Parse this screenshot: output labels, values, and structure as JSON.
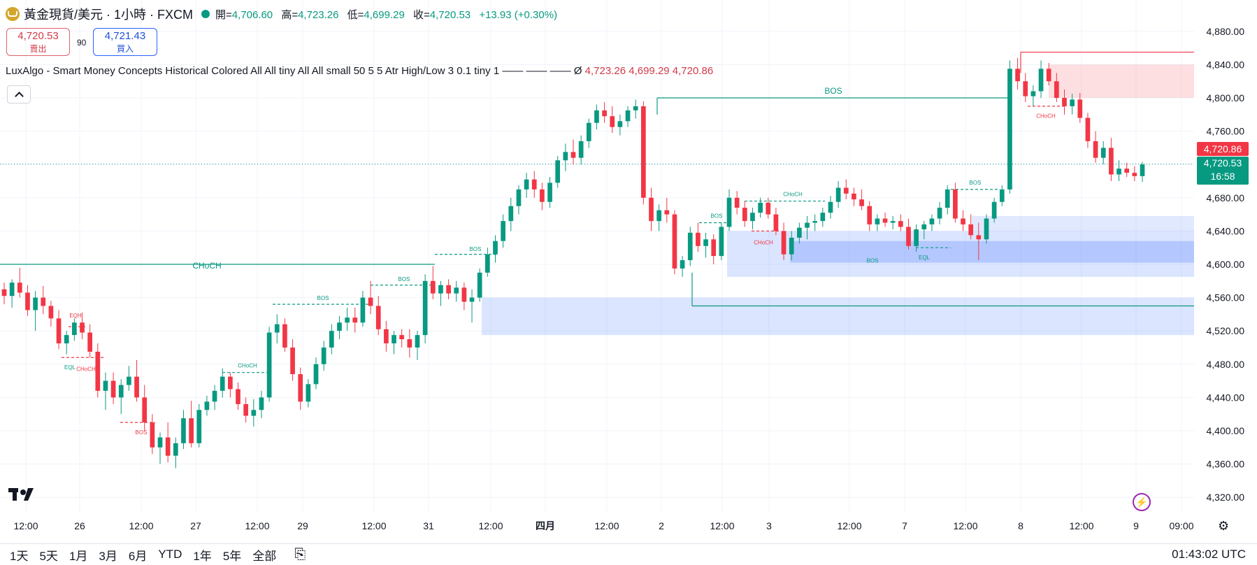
{
  "header": {
    "symbol": "黃金現貨/美元 · 1小時 · FXCM",
    "open_label": "開=",
    "open": "4,706.60",
    "high_label": "高=",
    "high": "4,723.26",
    "low_label": "低=",
    "low": "4,699.29",
    "close_label": "收=",
    "close": "4,720.53",
    "change": "+13.93 (+0.30%)"
  },
  "trade": {
    "sell_price": "4,720.53",
    "sell_label": "賣出",
    "spread": "90",
    "buy_price": "4,721.43",
    "buy_label": "買入"
  },
  "indicator": {
    "text": "LuxAlgo - Smart Money Concepts Historical Colored All All tiny All All small 50 5 5 Atr High/Low 3 0.1 tiny 1 —— —— ——  Ø",
    "v1": "4,723.26",
    "v2": "4,699.29",
    "v3": "4,720.86"
  },
  "price_labels": {
    "last": "4,720.86",
    "current": "4,720.53",
    "countdown": "16:58"
  },
  "chart_data": {
    "type": "candlestick",
    "symbol": "XAUUSD",
    "timeframe": "1H",
    "ylim": [
      4300,
      4900
    ],
    "y_ticks": [
      "4,320.00",
      "4,360.00",
      "4,400.00",
      "4,440.00",
      "4,480.00",
      "4,520.00",
      "4,560.00",
      "4,600.00",
      "4,640.00",
      "4,680.00",
      "4,720.00",
      "4,760.00",
      "4,800.00",
      "4,840.00",
      "4,880.00"
    ],
    "x_ticks": [
      "12:00",
      "26",
      "12:00",
      "27",
      "12:00",
      "29",
      "12:00",
      "31",
      "12:00",
      "四月",
      "12:00",
      "2",
      "12:00",
      "3",
      "12:00",
      "7",
      "12:00",
      "8",
      "12:00",
      "9",
      "09:00"
    ],
    "candles_ohlc": [
      [
        4570,
        4578,
        4552,
        4562
      ],
      [
        4562,
        4582,
        4548,
        4578
      ],
      [
        4578,
        4596,
        4560,
        4566
      ],
      [
        4566,
        4575,
        4538,
        4545
      ],
      [
        4545,
        4568,
        4520,
        4560
      ],
      [
        4560,
        4574,
        4540,
        4550
      ],
      [
        4550,
        4556,
        4525,
        4535
      ],
      [
        4535,
        4545,
        4498,
        4505
      ],
      [
        4505,
        4520,
        4492,
        4515
      ],
      [
        4515,
        4535,
        4508,
        4530
      ],
      [
        4530,
        4542,
        4510,
        4518
      ],
      [
        4518,
        4528,
        4488,
        4495
      ],
      [
        4495,
        4505,
        4440,
        4448
      ],
      [
        4448,
        4470,
        4425,
        4460
      ],
      [
        4460,
        4470,
        4432,
        4440
      ],
      [
        4440,
        4462,
        4420,
        4455
      ],
      [
        4455,
        4478,
        4448,
        4465
      ],
      [
        4465,
        4485,
        4435,
        4440
      ],
      [
        4440,
        4455,
        4400,
        4410
      ],
      [
        4410,
        4420,
        4372,
        4380
      ],
      [
        4380,
        4398,
        4360,
        4392
      ],
      [
        4392,
        4410,
        4362,
        4370
      ],
      [
        4370,
        4392,
        4355,
        4385
      ],
      [
        4385,
        4425,
        4378,
        4415
      ],
      [
        4415,
        4436,
        4380,
        4385
      ],
      [
        4385,
        4432,
        4380,
        4425
      ],
      [
        4425,
        4442,
        4418,
        4435
      ],
      [
        4435,
        4455,
        4425,
        4448
      ],
      [
        4448,
        4475,
        4440,
        4465
      ],
      [
        4465,
        4470,
        4440,
        4450
      ],
      [
        4450,
        4458,
        4425,
        4432
      ],
      [
        4432,
        4440,
        4410,
        4418
      ],
      [
        4418,
        4438,
        4405,
        4425
      ],
      [
        4425,
        4448,
        4415,
        4440
      ],
      [
        4440,
        4525,
        4435,
        4518
      ],
      [
        4518,
        4540,
        4505,
        4528
      ],
      [
        4528,
        4535,
        4495,
        4500
      ],
      [
        4500,
        4510,
        4460,
        4468
      ],
      [
        4468,
        4476,
        4425,
        4435
      ],
      [
        4435,
        4462,
        4428,
        4456
      ],
      [
        4456,
        4488,
        4450,
        4480
      ],
      [
        4480,
        4508,
        4472,
        4500
      ],
      [
        4500,
        4528,
        4492,
        4520
      ],
      [
        4520,
        4538,
        4510,
        4530
      ],
      [
        4530,
        4548,
        4520,
        4536
      ],
      [
        4536,
        4548,
        4518,
        4530
      ],
      [
        4530,
        4568,
        4525,
        4560
      ],
      [
        4560,
        4580,
        4540,
        4550
      ],
      [
        4550,
        4562,
        4515,
        4522
      ],
      [
        4522,
        4532,
        4495,
        4505
      ],
      [
        4505,
        4520,
        4492,
        4515
      ],
      [
        4515,
        4522,
        4500,
        4510
      ],
      [
        4510,
        4522,
        4488,
        4500
      ],
      [
        4500,
        4520,
        4485,
        4515
      ],
      [
        4515,
        4588,
        4505,
        4580
      ],
      [
        4580,
        4598,
        4558,
        4565
      ],
      [
        4565,
        4580,
        4550,
        4575
      ],
      [
        4575,
        4582,
        4558,
        4565
      ],
      [
        4565,
        4580,
        4555,
        4572
      ],
      [
        4572,
        4578,
        4545,
        4555
      ],
      [
        4555,
        4570,
        4530,
        4560
      ],
      [
        4560,
        4595,
        4555,
        4590
      ],
      [
        4590,
        4620,
        4585,
        4612
      ],
      [
        4612,
        4635,
        4602,
        4628
      ],
      [
        4628,
        4660,
        4620,
        4652
      ],
      [
        4652,
        4680,
        4640,
        4670
      ],
      [
        4670,
        4695,
        4660,
        4690
      ],
      [
        4690,
        4710,
        4680,
        4702
      ],
      [
        4702,
        4712,
        4680,
        4690
      ],
      [
        4690,
        4698,
        4665,
        4675
      ],
      [
        4675,
        4705,
        4668,
        4698
      ],
      [
        4698,
        4730,
        4692,
        4725
      ],
      [
        4725,
        4745,
        4712,
        4735
      ],
      [
        4735,
        4750,
        4720,
        4728
      ],
      [
        4728,
        4755,
        4720,
        4748
      ],
      [
        4748,
        4775,
        4740,
        4770
      ],
      [
        4770,
        4792,
        4762,
        4785
      ],
      [
        4785,
        4795,
        4770,
        4778
      ],
      [
        4778,
        4790,
        4758,
        4765
      ],
      [
        4765,
        4780,
        4755,
        4772
      ],
      [
        4772,
        4790,
        4765,
        4785
      ],
      [
        4785,
        4798,
        4775,
        4790
      ],
      [
        4790,
        4796,
        4672,
        4680
      ],
      [
        4680,
        4692,
        4640,
        4652
      ],
      [
        4652,
        4672,
        4640,
        4665
      ],
      [
        4665,
        4680,
        4650,
        4660
      ],
      [
        4660,
        4665,
        4588,
        4595
      ],
      [
        4595,
        4610,
        4585,
        4605
      ],
      [
        4605,
        4645,
        4598,
        4638
      ],
      [
        4638,
        4650,
        4615,
        4622
      ],
      [
        4622,
        4638,
        4608,
        4630
      ],
      [
        4630,
        4636,
        4600,
        4610
      ],
      [
        4610,
        4650,
        4605,
        4645
      ],
      [
        4645,
        4690,
        4640,
        4680
      ],
      [
        4680,
        4688,
        4660,
        4668
      ],
      [
        4668,
        4676,
        4645,
        4652
      ],
      [
        4652,
        4668,
        4642,
        4662
      ],
      [
        4662,
        4680,
        4656,
        4674
      ],
      [
        4674,
        4680,
        4655,
        4660
      ],
      [
        4660,
        4668,
        4635,
        4640
      ],
      [
        4640,
        4650,
        4605,
        4612
      ],
      [
        4612,
        4640,
        4605,
        4632
      ],
      [
        4632,
        4650,
        4625,
        4644
      ],
      [
        4644,
        4658,
        4630,
        4650
      ],
      [
        4650,
        4660,
        4640,
        4652
      ],
      [
        4652,
        4668,
        4645,
        4662
      ],
      [
        4662,
        4682,
        4655,
        4675
      ],
      [
        4675,
        4700,
        4668,
        4692
      ],
      [
        4692,
        4702,
        4678,
        4685
      ],
      [
        4685,
        4692,
        4670,
        4678
      ],
      [
        4678,
        4690,
        4665,
        4670
      ],
      [
        4670,
        4676,
        4640,
        4648
      ],
      [
        4648,
        4660,
        4640,
        4655
      ],
      [
        4655,
        4662,
        4645,
        4650
      ],
      [
        4650,
        4658,
        4642,
        4652
      ],
      [
        4652,
        4660,
        4640,
        4645
      ],
      [
        4645,
        4655,
        4618,
        4622
      ],
      [
        4622,
        4648,
        4615,
        4642
      ],
      [
        4642,
        4652,
        4630,
        4648
      ],
      [
        4648,
        4660,
        4640,
        4655
      ],
      [
        4655,
        4675,
        4648,
        4668
      ],
      [
        4668,
        4695,
        4660,
        4690
      ],
      [
        4690,
        4698,
        4650,
        4655
      ],
      [
        4655,
        4665,
        4640,
        4648
      ],
      [
        4648,
        4660,
        4630,
        4635
      ],
      [
        4635,
        4650,
        4605,
        4630
      ],
      [
        4630,
        4660,
        4625,
        4655
      ],
      [
        4655,
        4680,
        4650,
        4675
      ],
      [
        4675,
        4695,
        4670,
        4690
      ],
      [
        4690,
        4845,
        4685,
        4835
      ],
      [
        4835,
        4848,
        4810,
        4820
      ],
      [
        4820,
        4830,
        4795,
        4802
      ],
      [
        4802,
        4815,
        4790,
        4808
      ],
      [
        4808,
        4845,
        4800,
        4835
      ],
      [
        4835,
        4842,
        4815,
        4820
      ],
      [
        4820,
        4830,
        4795,
        4800
      ],
      [
        4800,
        4810,
        4780,
        4790
      ],
      [
        4790,
        4805,
        4780,
        4798
      ],
      [
        4798,
        4806,
        4770,
        4776
      ],
      [
        4776,
        4782,
        4740,
        4748
      ],
      [
        4748,
        4760,
        4722,
        4728
      ],
      [
        4728,
        4748,
        4720,
        4740
      ],
      [
        4740,
        4752,
        4700,
        4708
      ],
      [
        4708,
        4725,
        4700,
        4715
      ],
      [
        4715,
        4722,
        4705,
        4710
      ],
      [
        4710,
        4718,
        4700,
        4706
      ],
      [
        4706,
        4723,
        4699,
        4720
      ]
    ],
    "labels": [
      "CHoCH",
      "BOS",
      "BOS",
      "BOS",
      "BOS",
      "CHoCH",
      "BOS",
      "BOS",
      "CHoCH",
      "CHoCH",
      "BOS",
      "EQH",
      "EQL",
      "CHoCH",
      "BOS",
      "EQL",
      "CHoCH"
    ],
    "grid": true
  },
  "timeframes": [
    "1天",
    "5天",
    "1月",
    "3月",
    "6月",
    "YTD",
    "1年",
    "5年",
    "全部"
  ],
  "clock": "01:43:02 UTC",
  "icons": {
    "logo": "tradingview-logo",
    "bolt": "lightning-icon",
    "gear": "settings-icon",
    "compare": "compare-icon"
  },
  "colors": {
    "up": "#089981",
    "down": "#f23645",
    "zone_blue": "#2962ff",
    "zone_red": "#f23645"
  }
}
